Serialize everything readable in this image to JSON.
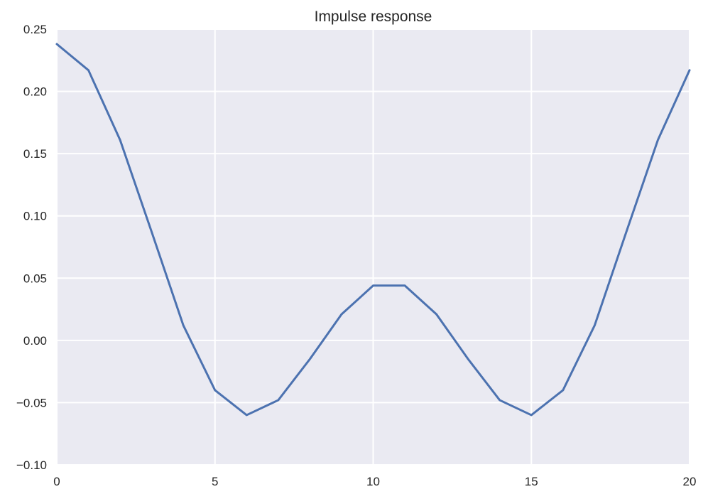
{
  "chart_data": {
    "type": "line",
    "title": "Impulse response",
    "xlabel": "",
    "ylabel": "",
    "xlim": [
      0,
      20
    ],
    "ylim": [
      -0.1,
      0.25
    ],
    "x_ticks": [
      0,
      5,
      10,
      15,
      20
    ],
    "x_tick_labels": [
      "0",
      "5",
      "10",
      "15",
      "20"
    ],
    "y_ticks": [
      -0.1,
      -0.05,
      0.0,
      0.05,
      0.1,
      0.15,
      0.2,
      0.25
    ],
    "y_tick_labels": [
      "−0.10",
      "−0.05",
      "0.00",
      "0.05",
      "0.10",
      "0.15",
      "0.20",
      "0.25"
    ],
    "grid": true,
    "legend": "none",
    "colors": {
      "plot_background": "#eaeaf2",
      "series": "#4c72b0",
      "gridline": "#ffffff",
      "text": "#262626"
    },
    "series": [
      {
        "x": [
          0,
          1,
          2,
          3,
          4,
          5,
          6,
          7,
          8,
          9,
          10,
          11,
          12,
          13,
          14,
          15,
          16,
          17,
          18,
          19,
          20
        ],
        "y": [
          0.238,
          0.217,
          0.161,
          0.087,
          0.012,
          -0.04,
          -0.06,
          -0.048,
          -0.015,
          0.021,
          0.044,
          0.044,
          0.021,
          -0.015,
          -0.048,
          -0.06,
          -0.04,
          0.012,
          0.087,
          0.161,
          0.217
        ]
      }
    ]
  }
}
